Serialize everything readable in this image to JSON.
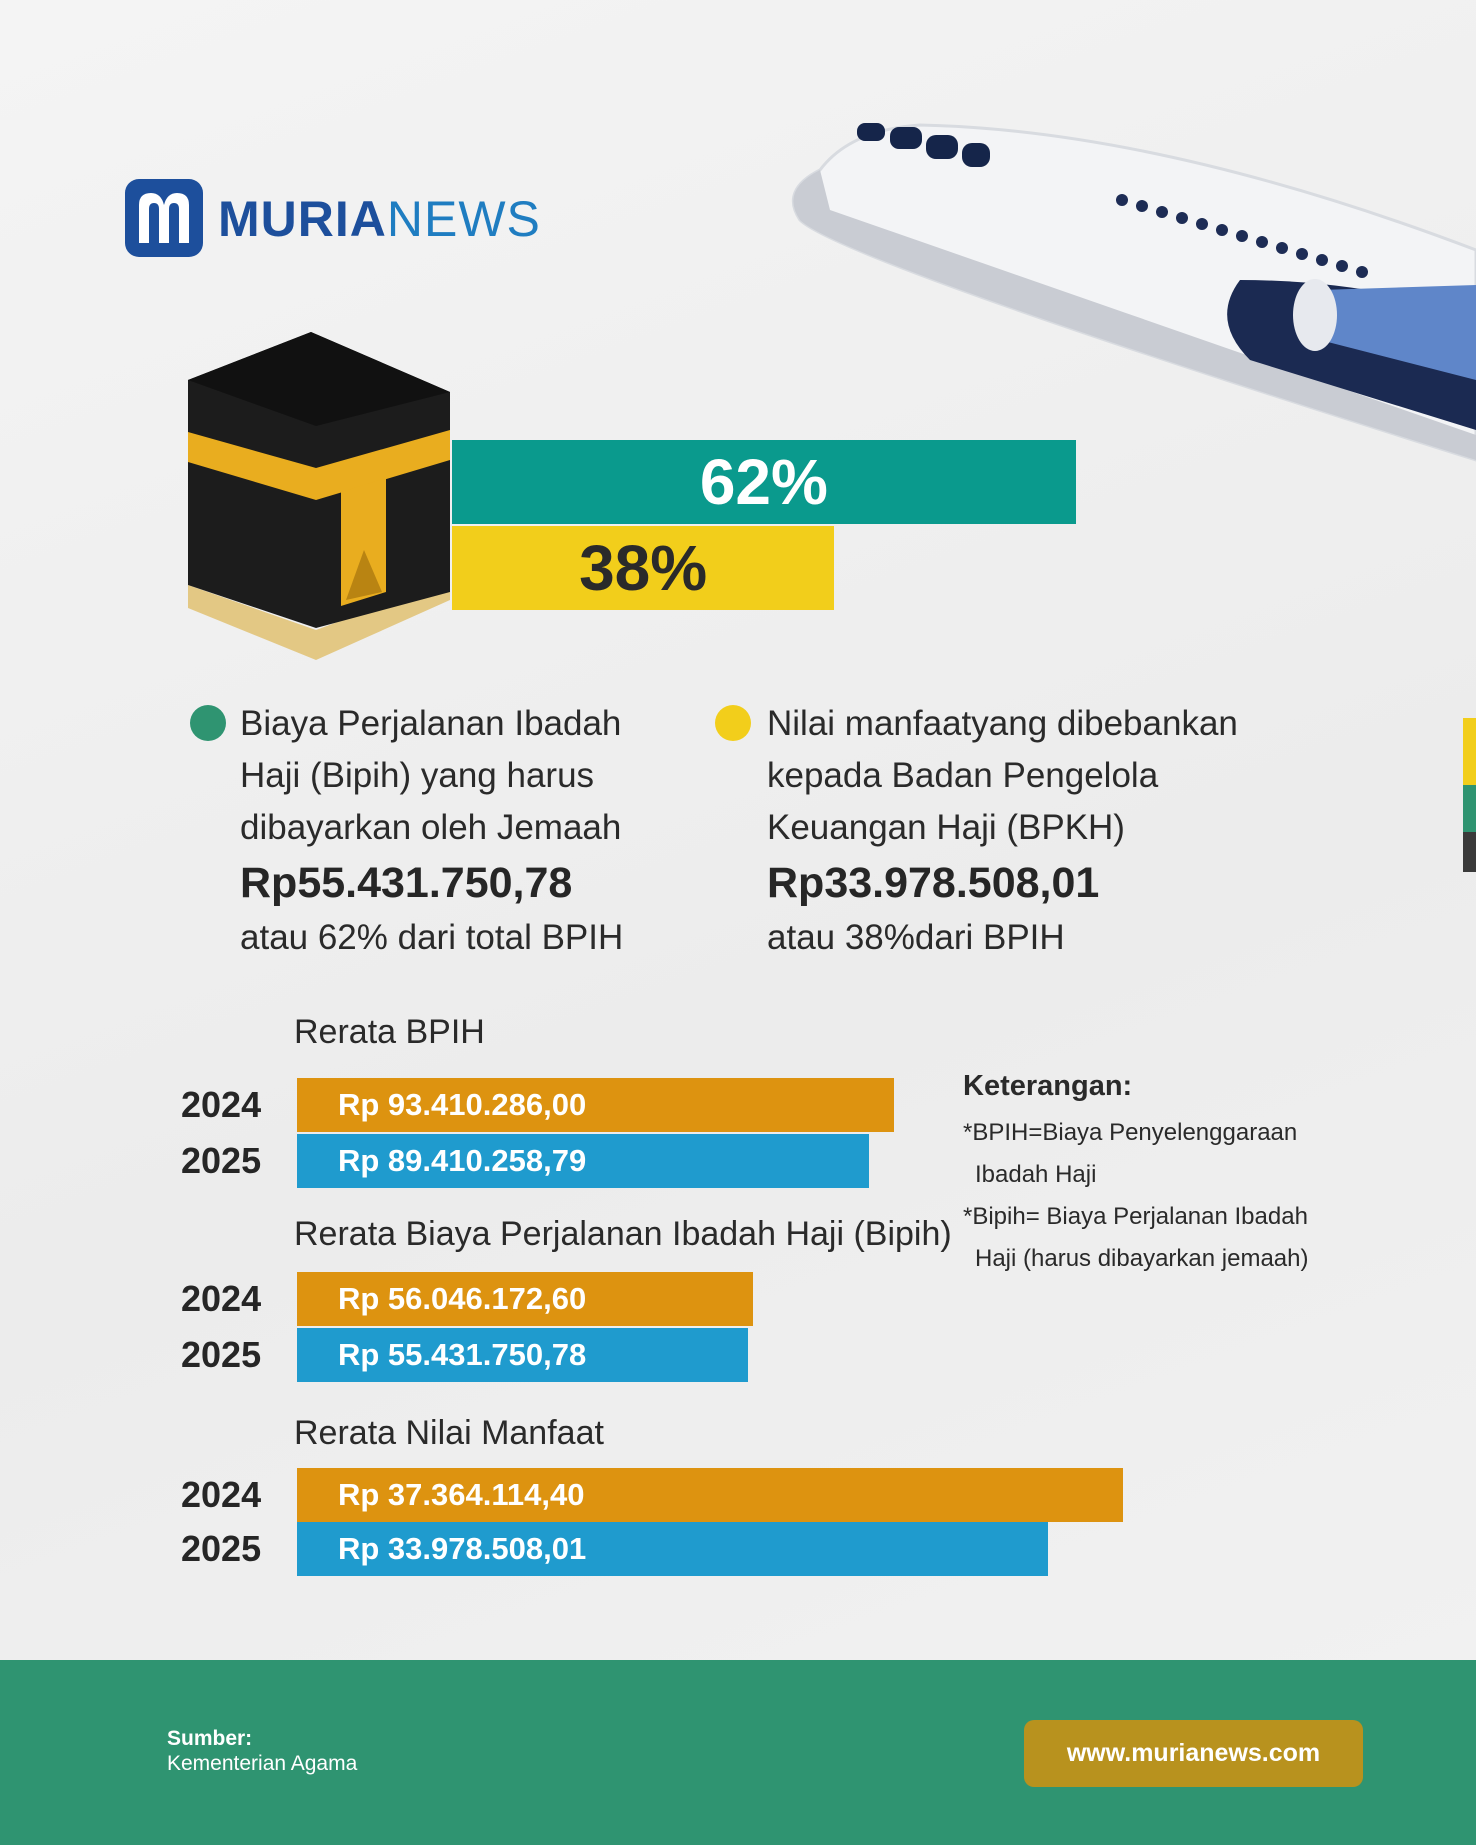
{
  "logo": {
    "bold": "MURIA",
    "light": "NEWS"
  },
  "split": {
    "xlim": [
      0,
      100
    ],
    "segments": [
      {
        "value": 62,
        "label": "62%",
        "color": "#0a9a8d"
      },
      {
        "value": 38,
        "label": "38%",
        "color": "#f2ce1b"
      }
    ]
  },
  "legend": [
    {
      "color": "#2f9471",
      "description": "Biaya Perjalanan Ibadah Haji (Bipih) yang harus dibayarkan oleh Jemaah",
      "amount": "Rp55.431.750,78",
      "note": "atau 62% dari total BPIH"
    },
    {
      "color": "#f2ce1b",
      "description": "Nilai manfaatyang dibebankan kepada Badan Pengelola Keuangan Haji (BPKH)",
      "amount": "Rp33.978.508,01",
      "note": "atau 38%dari BPIH"
    }
  ],
  "comparisons": [
    {
      "title": "Rerata BPIH",
      "xlim": [
        0,
        140000000
      ],
      "rows": [
        {
          "year": "2024",
          "value": 93410286.0,
          "value_label": "Rp 93.410.286,00",
          "color": "#dd9310"
        },
        {
          "year": "2025",
          "value": 89410258.79,
          "value_label": "Rp 89.410.258,79",
          "color": "#1f9bce"
        }
      ]
    },
    {
      "title": "Rerata Biaya Perjalanan Ibadah Haji (Bipih)",
      "xlim": [
        0,
        110000000
      ],
      "rows": [
        {
          "year": "2024",
          "value": 56046172.6,
          "value_label": "Rp 56.046.172,60",
          "color": "#dd9310"
        },
        {
          "year": "2025",
          "value": 55431750.78,
          "value_label": "Rp 55.431.750,78",
          "color": "#1f9bce"
        }
      ]
    },
    {
      "title": "Rerata Nilai Manfaat",
      "xlim": [
        0,
        40500000
      ],
      "rows": [
        {
          "year": "2024",
          "value": 37364114.4,
          "value_label": "Rp 37.364.114,40",
          "color": "#dd9310"
        },
        {
          "year": "2025",
          "value": 33978508.01,
          "value_label": "Rp 33.978.508,01",
          "color": "#1f9bce"
        }
      ]
    }
  ],
  "keterangan": {
    "title": "Keterangan:",
    "notes": [
      "*BPIH=Biaya Penyelenggaraan Ibadah Haji",
      "*Bipih= Biaya Perjalanan Ibadah Haji (harus dibayarkan jemaah)"
    ]
  },
  "footer": {
    "source_title": "Sumber:",
    "source": "Kementerian Agama",
    "website": "www.murianews.com"
  }
}
